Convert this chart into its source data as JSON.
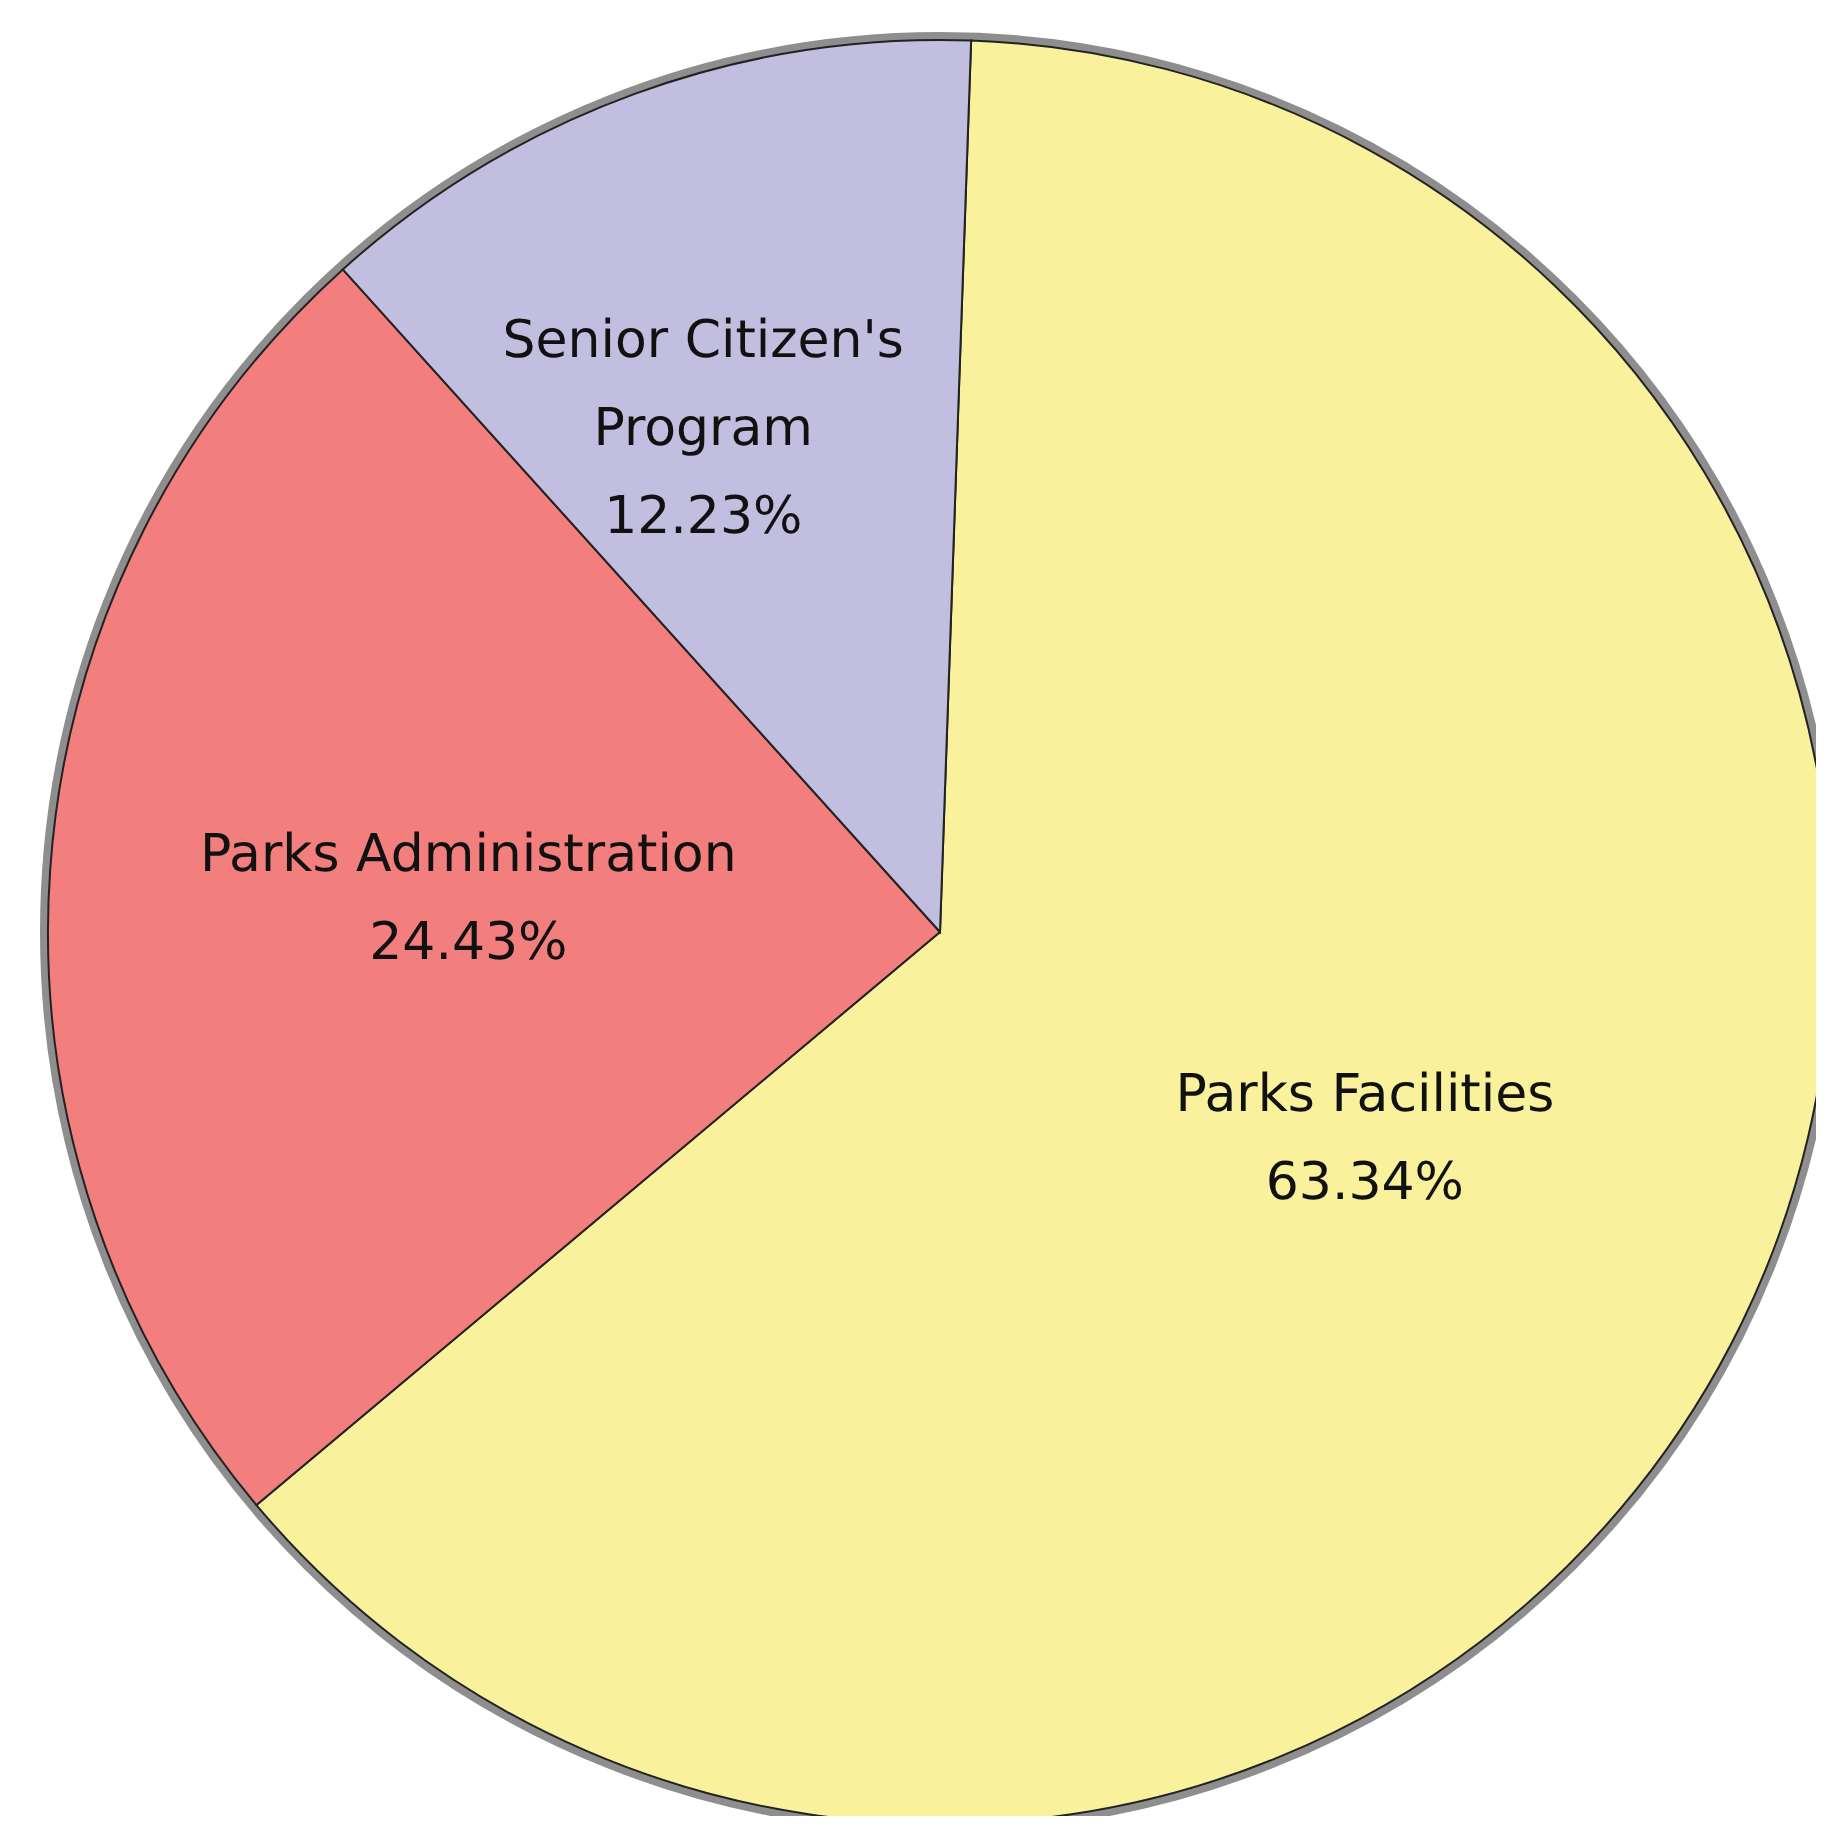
{
  "chart_data": {
    "type": "pie",
    "categories": [
      "Parks Facilities",
      "Parks Administration",
      "Senior Citizen's Program"
    ],
    "values": [
      63.34,
      24.43,
      12.23
    ],
    "value_labels": [
      "63.34%",
      "24.43%",
      "12.23%"
    ],
    "colors": [
      "#f9f19b",
      "#f37e7e",
      "#c2bedf"
    ],
    "legend": false
  }
}
